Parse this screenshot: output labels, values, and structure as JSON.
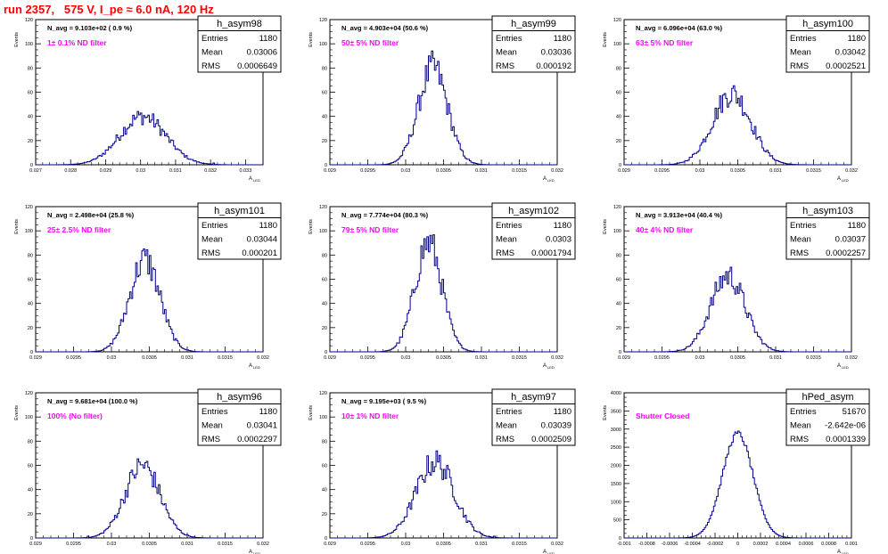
{
  "title": "run 2357,   575 V, I_pe ≈ 6.0 nA, 120 Hz",
  "colors": {
    "title": "#ff0000",
    "histogram": "#00008b",
    "annotation": "#ff00ff",
    "frame": "#000000"
  },
  "stat_labels": {
    "entries": "Entries",
    "mean": "Mean",
    "rms": "RMS"
  },
  "axis_labels": {
    "y": "Events",
    "x": "A",
    "x_sub": "LED"
  },
  "chart_data": [
    {
      "type": "bar",
      "name": "h_asym98",
      "navg": "N_avg = 9.103e+02 ( 0.9 %)",
      "filter": "1± 0.1% ND filter",
      "entries": "1180",
      "mean": "0.03006",
      "rms": "0.0006649",
      "xlim": [
        0.027,
        0.0335
      ],
      "xticks": [
        "0.027",
        "0.028",
        "0.029",
        "0.03",
        "0.031",
        "0.032",
        "0.033"
      ],
      "ylim": [
        0,
        120
      ],
      "yticks": [
        "0",
        "20",
        "40",
        "60",
        "80",
        "100",
        "120"
      ],
      "peak": 40,
      "width_sd": 0.00066,
      "center": 0.03006,
      "nbins": 150
    },
    {
      "type": "bar",
      "name": "h_asym99",
      "navg": "N_avg = 4.903e+04 (50.6 %)",
      "filter": "50± 5% ND filter",
      "entries": "1180",
      "mean": "0.03036",
      "rms": "0.000192",
      "xlim": [
        0.029,
        0.032
      ],
      "xticks": [
        "0.029",
        "0.0295",
        "0.03",
        "0.0305",
        "0.031",
        "0.0315",
        "0.032"
      ],
      "ylim": [
        0,
        120
      ],
      "yticks": [
        "0",
        "20",
        "40",
        "60",
        "80",
        "100",
        "120"
      ],
      "peak": 80,
      "width_sd": 0.000192,
      "center": 0.03036,
      "nbins": 150
    },
    {
      "type": "bar",
      "name": "h_asym100",
      "navg": "N_avg = 6.096e+04 (63.0 %)",
      "filter": "63± 5% ND filter",
      "entries": "1180",
      "mean": "0.03042",
      "rms": "0.0002521",
      "xlim": [
        0.029,
        0.032
      ],
      "xticks": [
        "0.029",
        "0.0295",
        "0.03",
        "0.0305",
        "0.031",
        "0.0315",
        "0.032"
      ],
      "ylim": [
        0,
        120
      ],
      "yticks": [
        "0",
        "20",
        "40",
        "60",
        "80",
        "100",
        "120"
      ],
      "peak": 59,
      "width_sd": 0.000252,
      "center": 0.03042,
      "nbins": 150
    },
    {
      "type": "bar",
      "name": "h_asym101",
      "navg": "N_avg = 2.498e+04 (25.8 %)",
      "filter": "25± 2.5% ND filter",
      "entries": "1180",
      "mean": "0.03044",
      "rms": "0.000201",
      "xlim": [
        0.029,
        0.032
      ],
      "xticks": [
        "0.029",
        "0.0295",
        "0.03",
        "0.0305",
        "0.031",
        "0.0315",
        "0.032"
      ],
      "ylim": [
        0,
        120
      ],
      "yticks": [
        "0",
        "20",
        "40",
        "60",
        "80",
        "100",
        "120"
      ],
      "peak": 76,
      "width_sd": 0.000201,
      "center": 0.03044,
      "nbins": 150
    },
    {
      "type": "bar",
      "name": "h_asym102",
      "navg": "N_avg = 7.774e+04 (80.3 %)",
      "filter": "79± 5% ND filter",
      "entries": "1180",
      "mean": "0.0303",
      "rms": "0.0001794",
      "xlim": [
        0.029,
        0.032
      ],
      "xticks": [
        "0.029",
        "0.0295",
        "0.03",
        "0.0305",
        "0.031",
        "0.0315",
        "0.032"
      ],
      "ylim": [
        0,
        120
      ],
      "yticks": [
        "0",
        "20",
        "40",
        "60",
        "80",
        "100",
        "120"
      ],
      "peak": 90,
      "width_sd": 0.000179,
      "center": 0.0303,
      "nbins": 150
    },
    {
      "type": "bar",
      "name": "h_asym103",
      "navg": "N_avg = 3.913e+04 (40.4 %)",
      "filter": "40± 4% ND filter",
      "entries": "1180",
      "mean": "0.03037",
      "rms": "0.0002257",
      "xlim": [
        0.029,
        0.032
      ],
      "xticks": [
        "0.029",
        "0.0295",
        "0.03",
        "0.0305",
        "0.031",
        "0.0315",
        "0.032"
      ],
      "ylim": [
        0,
        120
      ],
      "yticks": [
        "0",
        "20",
        "40",
        "60",
        "80",
        "100",
        "120"
      ],
      "peak": 63,
      "width_sd": 0.000226,
      "center": 0.03037,
      "nbins": 150
    },
    {
      "type": "bar",
      "name": "h_asym96",
      "navg": "N_avg = 9.681e+04 (100.0 %)",
      "filter": "100% (No filter)",
      "entries": "1180",
      "mean": "0.03041",
      "rms": "0.0002297",
      "xlim": [
        0.029,
        0.032
      ],
      "xticks": [
        "0.029",
        "0.0295",
        "0.03",
        "0.0305",
        "0.031",
        "0.0315",
        "0.032"
      ],
      "ylim": [
        0,
        120
      ],
      "yticks": [
        "0",
        "20",
        "40",
        "60",
        "80",
        "100",
        "120"
      ],
      "peak": 60,
      "width_sd": 0.00023,
      "center": 0.03041,
      "nbins": 150
    },
    {
      "type": "bar",
      "name": "h_asym97",
      "navg": "N_avg = 9.195e+03 ( 9.5 %)",
      "filter": "10± 1% ND filter",
      "entries": "1180",
      "mean": "0.03039",
      "rms": "0.0002509",
      "xlim": [
        0.029,
        0.032
      ],
      "xticks": [
        "0.029",
        "0.0295",
        "0.03",
        "0.0305",
        "0.031",
        "0.0315",
        "0.032"
      ],
      "ylim": [
        0,
        120
      ],
      "yticks": [
        "0",
        "20",
        "40",
        "60",
        "80",
        "100",
        "120"
      ],
      "peak": 63,
      "width_sd": 0.000251,
      "center": 0.03039,
      "nbins": 150
    },
    {
      "type": "bar",
      "name": "hPed_asym",
      "navg": "",
      "filter": "Shutter Closed",
      "entries": "51670",
      "mean": "-2.642e-06",
      "rms": "0.0001339",
      "xlim": [
        -0.001,
        0.001
      ],
      "xticks": [
        "-0.001",
        "-0.0008",
        "-0.0006",
        "-0.0004",
        "-0.0002",
        "0",
        "0.0002",
        "0.0004",
        "0.0006",
        "0.0008",
        "0.001"
      ],
      "ylim": [
        0,
        4000
      ],
      "yticks": [
        "0",
        "500",
        "1000",
        "1500",
        "2000",
        "2500",
        "3000",
        "3500",
        "4000"
      ],
      "peak": 2880,
      "width_sd": 0.000134,
      "center": 0.0,
      "nbins": 150
    }
  ]
}
